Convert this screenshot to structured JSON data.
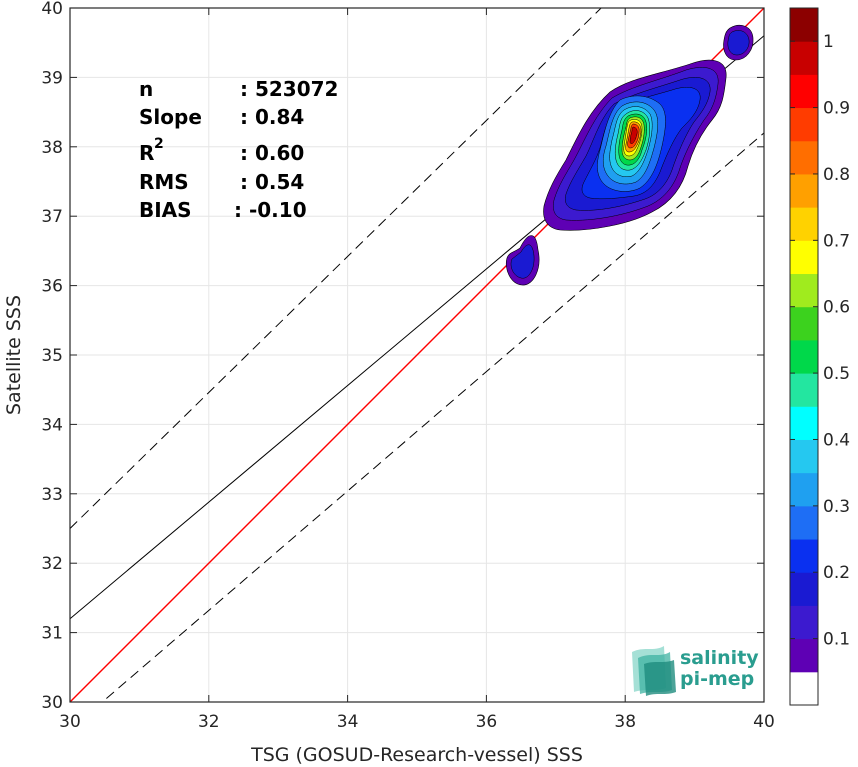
{
  "chart_data": {
    "type": "heatmap",
    "subtype": "density-contour-scatter",
    "title": "",
    "xlabel": "TSG (GOSUD-Research-vessel) SSS",
    "ylabel": "Satellite SSS",
    "xlim": [
      30,
      40
    ],
    "ylim": [
      30,
      40
    ],
    "xticks": [
      "30",
      "32",
      "34",
      "36",
      "38",
      "40"
    ],
    "yticks": [
      "30",
      "31",
      "32",
      "33",
      "34",
      "35",
      "36",
      "37",
      "38",
      "39",
      "40"
    ],
    "grid": true,
    "stats": [
      {
        "label": "n",
        "value": ": 523072"
      },
      {
        "label": "Slope",
        "value": ": 0.84"
      },
      {
        "label": "R",
        "sup": "2",
        "value": ": 0.60"
      },
      {
        "label": "RMS",
        "value": ": 0.54"
      },
      {
        "label": "BIAS",
        "value": ": -0.10"
      }
    ],
    "lines": [
      {
        "kind": "identity",
        "color": "#ff0000",
        "x": [
          30,
          40
        ],
        "y": [
          30,
          40
        ]
      },
      {
        "kind": "fit",
        "color": "#000000",
        "x": [
          30,
          40
        ],
        "y": [
          31.2,
          39.6
        ]
      },
      {
        "kind": "upper-bound",
        "color": "#000000",
        "dashed": true,
        "x": [
          30,
          40
        ],
        "y": [
          32.5,
          42.3
        ]
      },
      {
        "kind": "lower-bound",
        "color": "#000000",
        "dashed": true,
        "x": [
          30,
          40
        ],
        "y": [
          29.6,
          38.2
        ]
      }
    ],
    "density_peak": {
      "x": 38.2,
      "y": 38.2,
      "value": 1.0
    },
    "colorbar": {
      "ticks": [
        "0.1",
        "0.2",
        "0.3",
        "0.4",
        "0.5",
        "0.6",
        "0.7",
        "0.8",
        "0.9",
        "1"
      ],
      "range": [
        0,
        1
      ],
      "levels": [
        {
          "min": 0.0,
          "max": 0.05,
          "color": "#ffffff"
        },
        {
          "min": 0.05,
          "max": 0.1,
          "color": "#5e00b4"
        },
        {
          "min": 0.1,
          "max": 0.15,
          "color": "#3c1acf"
        },
        {
          "min": 0.15,
          "max": 0.2,
          "color": "#1a1ad2"
        },
        {
          "min": 0.2,
          "max": 0.25,
          "color": "#0a30f0"
        },
        {
          "min": 0.25,
          "max": 0.3,
          "color": "#1e6ef5"
        },
        {
          "min": 0.3,
          "max": 0.35,
          "color": "#1fa0f0"
        },
        {
          "min": 0.35,
          "max": 0.4,
          "color": "#25c8f0"
        },
        {
          "min": 0.4,
          "max": 0.45,
          "color": "#00ffff"
        },
        {
          "min": 0.45,
          "max": 0.5,
          "color": "#23e6a0"
        },
        {
          "min": 0.5,
          "max": 0.55,
          "color": "#00d84a"
        },
        {
          "min": 0.55,
          "max": 0.6,
          "color": "#3cd21e"
        },
        {
          "min": 0.6,
          "max": 0.65,
          "color": "#a0eb1e"
        },
        {
          "min": 0.65,
          "max": 0.7,
          "color": "#ffff00"
        },
        {
          "min": 0.7,
          "max": 0.75,
          "color": "#ffd200"
        },
        {
          "min": 0.75,
          "max": 0.8,
          "color": "#ffa000"
        },
        {
          "min": 0.8,
          "max": 0.85,
          "color": "#ff6e00"
        },
        {
          "min": 0.85,
          "max": 0.9,
          "color": "#ff3c00"
        },
        {
          "min": 0.9,
          "max": 0.95,
          "color": "#ff0000"
        },
        {
          "min": 0.95,
          "max": 1.0,
          "color": "#c80000"
        },
        {
          "min": 1.0,
          "max": 1.05,
          "color": "#8c0000"
        }
      ]
    }
  },
  "logo": {
    "line1": "salinity",
    "line2": "pi-mep",
    "color": "#2a9d8f"
  }
}
